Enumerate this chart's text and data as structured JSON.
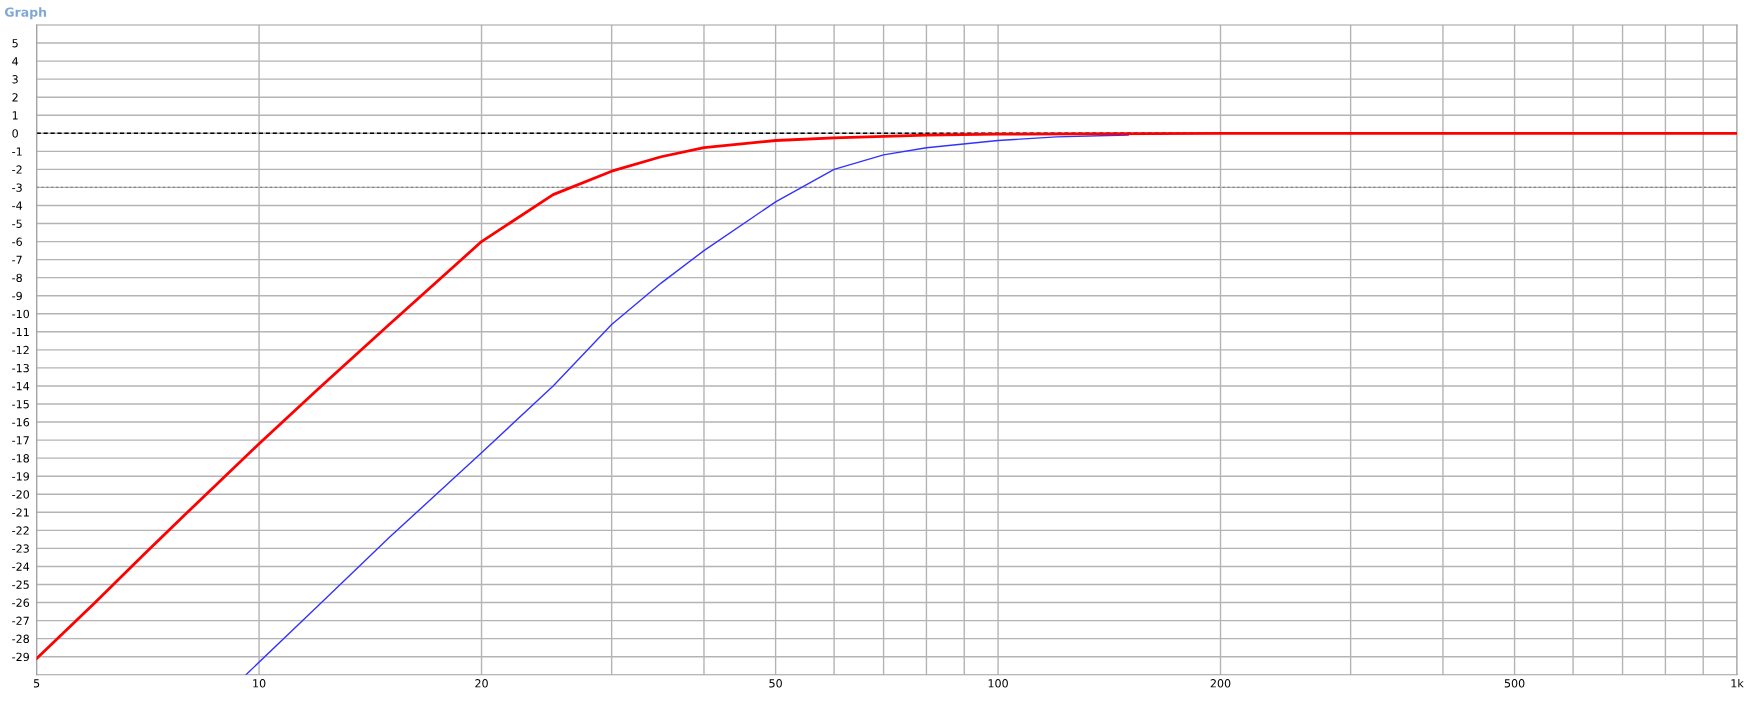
{
  "chart_data": {
    "type": "line",
    "title": "Graph",
    "xlim": [
      5,
      1000
    ],
    "ylim": [
      -30,
      6
    ],
    "log": "x",
    "xticks": [
      5,
      10,
      20,
      {
        "value": 30,
        "label": null
      },
      {
        "value": 40,
        "label": null
      },
      50,
      {
        "value": 60,
        "label": null
      },
      {
        "value": 70,
        "label": null
      },
      {
        "value": 80,
        "label": null
      },
      {
        "value": 90,
        "label": null
      },
      100,
      200,
      {
        "value": 300,
        "label": null
      },
      {
        "value": 400,
        "label": null
      },
      500,
      {
        "value": 600,
        "label": null
      },
      {
        "value": 700,
        "label": null
      },
      {
        "value": 800,
        "label": null
      },
      {
        "value": 900,
        "label": null
      },
      {
        "value": 1000,
        "label": "1k"
      }
    ],
    "yticks": [
      5,
      4,
      3,
      2,
      1,
      0,
      -1,
      -2,
      -3,
      -4,
      -5,
      -6,
      -7,
      -8,
      -9,
      -10,
      -11,
      -12,
      -13,
      -14,
      -15,
      -16,
      -17,
      -18,
      -19,
      -20,
      -21,
      -22,
      -23,
      -24,
      -25,
      -26,
      -27,
      -28,
      -29
    ],
    "grid": true,
    "marker": "none",
    "line_style": "solid",
    "ref_lines": [
      {
        "axis": "y",
        "value": 0,
        "color": "#000000",
        "line_style": "dashed"
      },
      {
        "axis": "y",
        "value": -3,
        "color": "#808080",
        "line_style": "dotted"
      }
    ],
    "series": [
      {
        "color": "#3333ff",
        "x": [
          9.6,
          12,
          15,
          20,
          25,
          30,
          35,
          40,
          50,
          60,
          70,
          80,
          100,
          120,
          150
        ],
        "values": [
          -30,
          -26.2,
          -22.4,
          -17.7,
          -14,
          -10.6,
          -8.3,
          -6.5,
          -3.8,
          -2.0,
          -1.2,
          -0.8,
          -0.4,
          -0.2,
          -0.1
        ]
      },
      {
        "color": "#ff0000",
        "x": [
          5,
          6,
          7,
          8,
          10,
          12,
          15,
          20,
          25,
          30,
          35,
          40,
          50,
          60,
          80,
          100,
          200,
          1000
        ],
        "values": [
          -29.1,
          -26,
          -23.3,
          -21,
          -17.2,
          -14.2,
          -10.6,
          -6.0,
          -3.4,
          -2.1,
          -1.3,
          -0.8,
          -0.4,
          -0.25,
          -0.1,
          -0.05,
          0,
          0
        ]
      }
    ]
  }
}
